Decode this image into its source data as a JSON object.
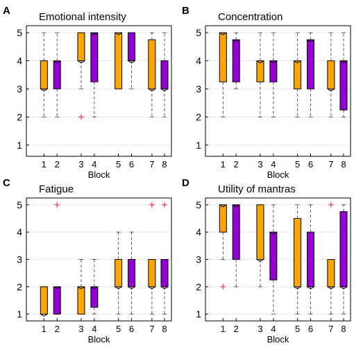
{
  "colors": {
    "orange": "#FFA500",
    "purple": "#9400D3",
    "outlier": "#ff3333",
    "grid": "#e6e6e6"
  },
  "chart_data": [
    {
      "type": "box",
      "panel_label": "A",
      "title": "Emotional intensity",
      "xlabel": "Block",
      "ylim": [
        0.6,
        5.25
      ],
      "yticks": [
        1,
        2,
        3,
        4,
        5
      ],
      "grid": true,
      "categories": [
        "1",
        "2",
        "3",
        "4",
        "5",
        "6",
        "7",
        "8"
      ],
      "boxes": [
        {
          "block": "1",
          "color": "orange",
          "q1": 3,
          "median": 3,
          "q3": 4,
          "whisker_low": 2,
          "whisker_high": 5,
          "outliers": []
        },
        {
          "block": "2",
          "color": "purple",
          "q1": 3,
          "median": 4,
          "q3": 4,
          "whisker_low": 2,
          "whisker_high": 5,
          "outliers": []
        },
        {
          "block": "3",
          "color": "orange",
          "q1": 4,
          "median": 4,
          "q3": 5,
          "whisker_low": 3,
          "whisker_high": 5,
          "outliers": [
            2
          ]
        },
        {
          "block": "4",
          "color": "purple",
          "q1": 3.25,
          "median": 5,
          "q3": 5,
          "whisker_low": 2,
          "whisker_high": 5,
          "outliers": []
        },
        {
          "block": "5",
          "color": "orange",
          "q1": 3,
          "median": 5,
          "q3": 5,
          "whisker_low": 3,
          "whisker_high": 5,
          "outliers": []
        },
        {
          "block": "6",
          "color": "purple",
          "q1": 4,
          "median": 4,
          "q3": 5,
          "whisker_low": 3,
          "whisker_high": 5,
          "outliers": []
        },
        {
          "block": "7",
          "color": "orange",
          "q1": 3,
          "median": 3,
          "q3": 4.75,
          "whisker_low": 2,
          "whisker_high": 5,
          "outliers": []
        },
        {
          "block": "8",
          "color": "purple",
          "q1": 3,
          "median": 3,
          "q3": 4,
          "whisker_low": 2,
          "whisker_high": 5,
          "outliers": []
        }
      ]
    },
    {
      "type": "box",
      "panel_label": "B",
      "title": "Concentration",
      "xlabel": "Block",
      "ylim": [
        0.6,
        5.25
      ],
      "yticks": [
        1,
        2,
        3,
        4,
        5
      ],
      "grid": true,
      "categories": [
        "1",
        "2",
        "3",
        "4",
        "5",
        "6",
        "7",
        "8"
      ],
      "boxes": [
        {
          "block": "1",
          "color": "orange",
          "q1": 3.25,
          "median": 5,
          "q3": 5,
          "whisker_low": 2,
          "whisker_high": 5,
          "outliers": []
        },
        {
          "block": "2",
          "color": "purple",
          "q1": 3.25,
          "median": 4.75,
          "q3": 4.75,
          "whisker_low": 3,
          "whisker_high": 5,
          "outliers": []
        },
        {
          "block": "3",
          "color": "orange",
          "q1": 3.25,
          "median": 4,
          "q3": 4,
          "whisker_low": 2,
          "whisker_high": 5,
          "outliers": []
        },
        {
          "block": "4",
          "color": "purple",
          "q1": 3.25,
          "median": 4,
          "q3": 4,
          "whisker_low": 2,
          "whisker_high": 5,
          "outliers": []
        },
        {
          "block": "5",
          "color": "orange",
          "q1": 3,
          "median": 4,
          "q3": 4,
          "whisker_low": 2,
          "whisker_high": 5,
          "outliers": []
        },
        {
          "block": "6",
          "color": "purple",
          "q1": 3,
          "median": 4.75,
          "q3": 4.75,
          "whisker_low": 2,
          "whisker_high": 5,
          "outliers": []
        },
        {
          "block": "7",
          "color": "orange",
          "q1": 3,
          "median": 3,
          "q3": 4,
          "whisker_low": 2,
          "whisker_high": 5,
          "outliers": []
        },
        {
          "block": "8",
          "color": "purple",
          "q1": 2.25,
          "median": 4,
          "q3": 4,
          "whisker_low": 2,
          "whisker_high": 5,
          "outliers": []
        }
      ]
    },
    {
      "type": "box",
      "panel_label": "C",
      "title": "Fatigue",
      "xlabel": "Block",
      "ylim": [
        0.75,
        5.25
      ],
      "yticks": [
        1,
        2,
        3,
        4,
        5
      ],
      "grid": true,
      "categories": [
        "1",
        "2",
        "3",
        "4",
        "5",
        "6",
        "7",
        "8"
      ],
      "boxes": [
        {
          "block": "1",
          "color": "orange",
          "q1": 1,
          "median": 1,
          "q3": 2,
          "whisker_low": 1,
          "whisker_high": 2,
          "outliers": []
        },
        {
          "block": "2",
          "color": "purple",
          "q1": 1,
          "median": 2,
          "q3": 2,
          "whisker_low": 1,
          "whisker_high": 2,
          "outliers": [
            5
          ]
        },
        {
          "block": "3",
          "color": "orange",
          "q1": 1,
          "median": 2,
          "q3": 2,
          "whisker_low": 1,
          "whisker_high": 3,
          "outliers": []
        },
        {
          "block": "4",
          "color": "purple",
          "q1": 1.25,
          "median": 2,
          "q3": 2,
          "whisker_low": 1,
          "whisker_high": 3,
          "outliers": []
        },
        {
          "block": "5",
          "color": "orange",
          "q1": 2,
          "median": 2,
          "q3": 3,
          "whisker_low": 1,
          "whisker_high": 4,
          "outliers": []
        },
        {
          "block": "6",
          "color": "purple",
          "q1": 2,
          "median": 2,
          "q3": 3,
          "whisker_low": 1,
          "whisker_high": 4,
          "outliers": []
        },
        {
          "block": "7",
          "color": "orange",
          "q1": 2,
          "median": 2,
          "q3": 3,
          "whisker_low": 1,
          "whisker_high": 3,
          "outliers": [
            5
          ]
        },
        {
          "block": "8",
          "color": "purple",
          "q1": 2,
          "median": 2,
          "q3": 3,
          "whisker_low": 1,
          "whisker_high": 3,
          "outliers": [
            5
          ]
        }
      ]
    },
    {
      "type": "box",
      "panel_label": "D",
      "title": "Utility of mantras",
      "xlabel": "Block",
      "ylim": [
        0.75,
        5.25
      ],
      "yticks": [
        1,
        2,
        3,
        4,
        5
      ],
      "grid": true,
      "categories": [
        "1",
        "2",
        "3",
        "4",
        "5",
        "6",
        "7",
        "8"
      ],
      "boxes": [
        {
          "block": "1",
          "color": "orange",
          "q1": 4,
          "median": 5,
          "q3": 5,
          "whisker_low": 3,
          "whisker_high": 5,
          "outliers": [
            2
          ]
        },
        {
          "block": "2",
          "color": "purple",
          "q1": 3,
          "median": 5,
          "q3": 5,
          "whisker_low": 2,
          "whisker_high": 5,
          "outliers": []
        },
        {
          "block": "3",
          "color": "orange",
          "q1": 3,
          "median": 3,
          "q3": 5,
          "whisker_low": 2,
          "whisker_high": 5,
          "outliers": []
        },
        {
          "block": "4",
          "color": "purple",
          "q1": 2.25,
          "median": 4,
          "q3": 4,
          "whisker_low": 1,
          "whisker_high": 5,
          "outliers": []
        },
        {
          "block": "5",
          "color": "orange",
          "q1": 2,
          "median": 2,
          "q3": 4.5,
          "whisker_low": 1,
          "whisker_high": 5,
          "outliers": []
        },
        {
          "block": "6",
          "color": "purple",
          "q1": 2,
          "median": 2,
          "q3": 4,
          "whisker_low": 1,
          "whisker_high": 5,
          "outliers": []
        },
        {
          "block": "7",
          "color": "orange",
          "q1": 2,
          "median": 2,
          "q3": 3,
          "whisker_low": 1,
          "whisker_high": 3,
          "outliers": [
            5
          ]
        },
        {
          "block": "8",
          "color": "purple",
          "q1": 2,
          "median": 2,
          "q3": 4.75,
          "whisker_low": 1,
          "whisker_high": 5,
          "outliers": []
        }
      ]
    }
  ]
}
